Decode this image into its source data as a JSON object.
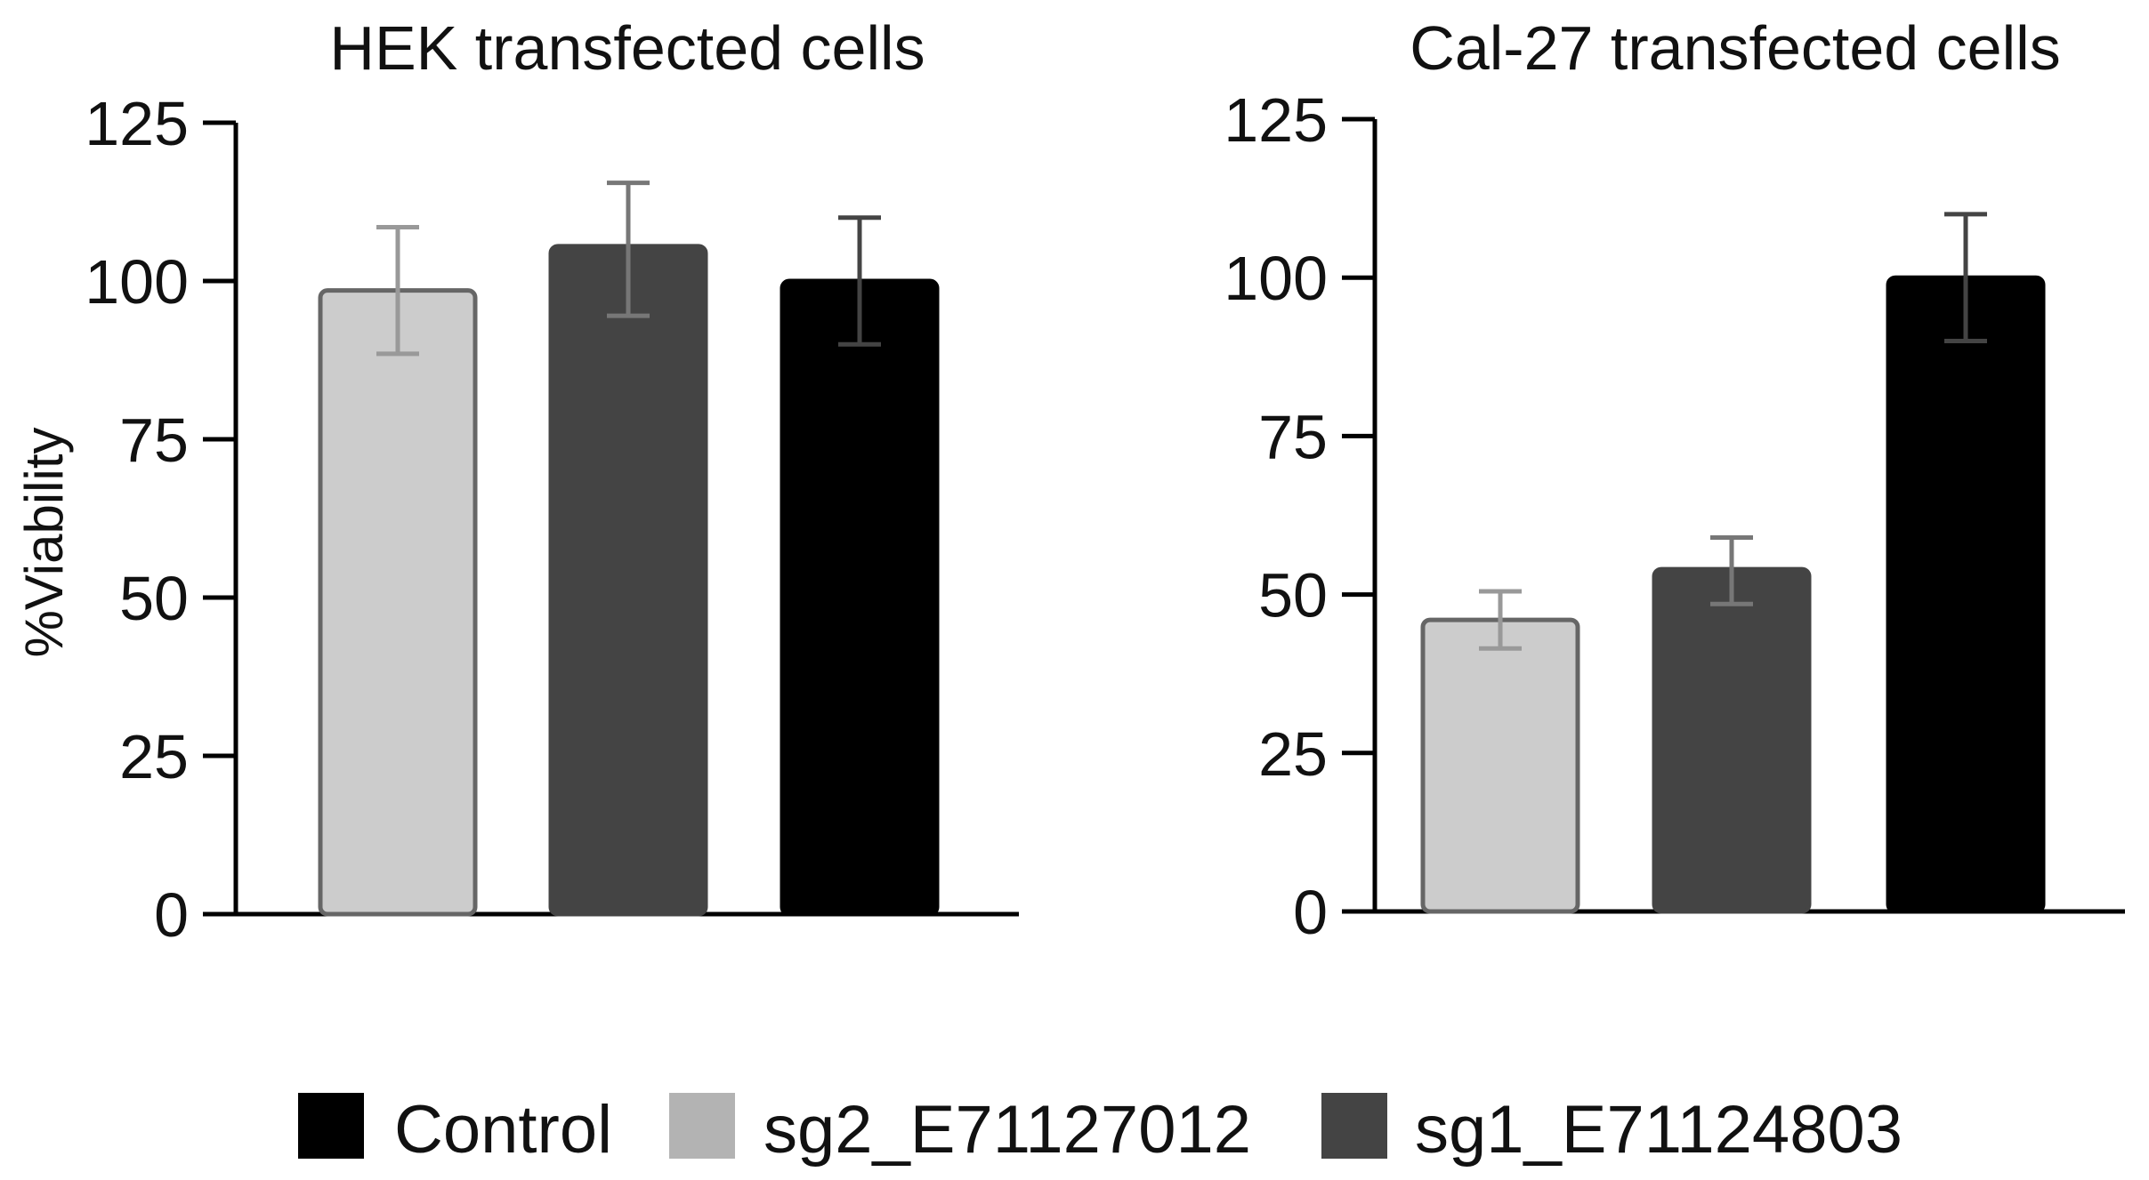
{
  "chart_data": [
    {
      "type": "bar",
      "title": "HEK transfected cells",
      "ylabel": "%Viability",
      "ylim": [
        0,
        125
      ],
      "yticks": [
        "0",
        "25",
        "50",
        "75",
        "100",
        "125"
      ],
      "error_bars": true,
      "bars": [
        {
          "series": "sg2_E71127012",
          "value": 98.5,
          "err_low": 88.5,
          "err_high": 108.5
        },
        {
          "series": "sg1_E71124803",
          "value": 105.5,
          "err_low": 94.5,
          "err_high": 115.5
        },
        {
          "series": "Control",
          "value": 100,
          "err_low": 90,
          "err_high": 110
        }
      ]
    },
    {
      "type": "bar",
      "title": "Cal-27 transfected cells",
      "ylabel": "",
      "ylim": [
        0,
        125
      ],
      "yticks": [
        "0",
        "25",
        "50",
        "75",
        "100",
        "125"
      ],
      "error_bars": true,
      "bars": [
        {
          "series": "sg2_E71127012",
          "value": 46,
          "err_low": 41.5,
          "err_high": 50.5
        },
        {
          "series": "sg1_E71124803",
          "value": 54,
          "err_low": 48.5,
          "err_high": 59
        },
        {
          "series": "Control",
          "value": 100,
          "err_low": 90,
          "err_high": 110
        }
      ]
    }
  ],
  "legend": {
    "placement": "bottom",
    "items": [
      {
        "label": "Control",
        "color": "#000000"
      },
      {
        "label": "sg2_E71127012",
        "color": "#b3b3b3"
      },
      {
        "label": "sg1_E71124803",
        "color": "#444444"
      }
    ]
  },
  "series_style": {
    "sg2_E71127012": {
      "fill": "#cccccc",
      "stroke": "#666666",
      "errorbar": "#999999"
    },
    "sg1_E71124803": {
      "fill": "#444444",
      "stroke": "#444444",
      "errorbar": "#777777"
    },
    "Control": {
      "fill": "#000000",
      "stroke": "#000000",
      "errorbar": "#444444"
    }
  }
}
